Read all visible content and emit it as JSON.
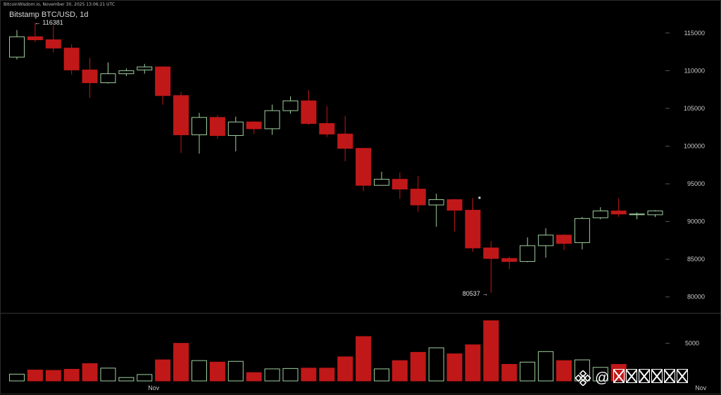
{
  "header": {
    "source_line": "BitcoinWisdom.io, November 30, 2025 13:06:21 UTC",
    "title": "Bitstamp BTC/USD, 1d"
  },
  "colors": {
    "up": "#9fcf9f",
    "down": "#c01818",
    "background": "#000000",
    "grid": "#2a2a2a"
  },
  "watermark": {
    "logo_icon": "binance-diamond-icon",
    "at_symbol": "@",
    "handle_glyph_count": 6
  },
  "chart_data": {
    "type": "candlestick",
    "title": "Bitstamp BTC/USD, 1d",
    "price_axis": {
      "ylim": [
        78200,
        117600
      ],
      "ticks": [
        115000,
        110000,
        105000,
        100000,
        95000,
        90000,
        85000,
        80000
      ],
      "tick_labels": [
        "115000",
        "110000",
        "105000",
        "100000",
        "95000",
        "90000",
        "85000",
        "80000"
      ],
      "side": "right"
    },
    "volume_axis": {
      "ylim": [
        0,
        8800
      ],
      "ticks": [
        5000
      ],
      "tick_labels": [
        "5000"
      ],
      "side": "right"
    },
    "x_tick_labels": [
      {
        "label": "Nov",
        "index": 7.5
      },
      {
        "label": "Nov",
        "index": 37.5
      }
    ],
    "annotations": [
      {
        "text": "← 116381",
        "index": 1,
        "value": 116381,
        "anchor": "high"
      },
      {
        "text": "80537 →",
        "index": 26,
        "value": 80537,
        "anchor": "low"
      }
    ],
    "candles": [
      {
        "o": 111800,
        "h": 115400,
        "l": 111500,
        "c": 114500
      },
      {
        "o": 114500,
        "h": 116381,
        "l": 113800,
        "c": 114100
      },
      {
        "o": 114100,
        "h": 116000,
        "l": 112400,
        "c": 113000
      },
      {
        "o": 113000,
        "h": 113500,
        "l": 109500,
        "c": 110100
      },
      {
        "o": 110100,
        "h": 111700,
        "l": 106400,
        "c": 108400
      },
      {
        "o": 108400,
        "h": 111100,
        "l": 108300,
        "c": 109600
      },
      {
        "o": 109600,
        "h": 110300,
        "l": 109300,
        "c": 110000
      },
      {
        "o": 110100,
        "h": 110900,
        "l": 109600,
        "c": 110500
      },
      {
        "o": 110500,
        "h": 110600,
        "l": 105500,
        "c": 106700
      },
      {
        "o": 106700,
        "h": 107200,
        "l": 99100,
        "c": 101500
      },
      {
        "o": 101500,
        "h": 104400,
        "l": 99000,
        "c": 103800
      },
      {
        "o": 103800,
        "h": 104100,
        "l": 101000,
        "c": 101400
      },
      {
        "o": 101400,
        "h": 103900,
        "l": 99300,
        "c": 103200
      },
      {
        "o": 103200,
        "h": 103300,
        "l": 101600,
        "c": 102300
      },
      {
        "o": 102300,
        "h": 105500,
        "l": 101500,
        "c": 104700
      },
      {
        "o": 104700,
        "h": 106600,
        "l": 104300,
        "c": 106000
      },
      {
        "o": 106000,
        "h": 107400,
        "l": 102800,
        "c": 103000
      },
      {
        "o": 103000,
        "h": 105300,
        "l": 101200,
        "c": 101600
      },
      {
        "o": 101600,
        "h": 104000,
        "l": 98000,
        "c": 99700
      },
      {
        "o": 99700,
        "h": 99700,
        "l": 94000,
        "c": 94800
      },
      {
        "o": 94800,
        "h": 96600,
        "l": 94800,
        "c": 95600
      },
      {
        "o": 95600,
        "h": 96500,
        "l": 93000,
        "c": 94300
      },
      {
        "o": 94300,
        "h": 96000,
        "l": 91300,
        "c": 92200
      },
      {
        "o": 92200,
        "h": 93700,
        "l": 89300,
        "c": 92900
      },
      {
        "o": 92900,
        "h": 93000,
        "l": 88700,
        "c": 91500
      },
      {
        "o": 91500,
        "h": 93100,
        "l": 86000,
        "c": 86500
      },
      {
        "o": 86500,
        "h": 87400,
        "l": 80537,
        "c": 85100
      },
      {
        "o": 85100,
        "h": 85300,
        "l": 83700,
        "c": 84700
      },
      {
        "o": 84700,
        "h": 87900,
        "l": 84600,
        "c": 86800
      },
      {
        "o": 86800,
        "h": 89100,
        "l": 85200,
        "c": 88200
      },
      {
        "o": 88200,
        "h": 88300,
        "l": 86200,
        "c": 87100
      },
      {
        "o": 87200,
        "h": 90600,
        "l": 86300,
        "c": 90400
      },
      {
        "o": 90500,
        "h": 91900,
        "l": 90300,
        "c": 91400
      },
      {
        "o": 91400,
        "h": 93100,
        "l": 90600,
        "c": 91000
      },
      {
        "o": 91000,
        "h": 91200,
        "l": 90300,
        "c": 91000
      },
      {
        "o": 90900,
        "h": 91500,
        "l": 90600,
        "c": 91400
      }
    ],
    "volume": [
      900,
      1450,
      1400,
      1550,
      2300,
      1700,
      450,
      850,
      2800,
      5000,
      2700,
      2500,
      2600,
      1100,
      1600,
      1650,
      1700,
      1700,
      3200,
      5900,
      1600,
      2700,
      3800,
      4400,
      3600,
      4800,
      8000,
      2200,
      2500,
      3900,
      2700,
      2800,
      1800,
      2200,
      0,
      0
    ],
    "volume_colors": [
      "up",
      "down",
      "down",
      "down",
      "down",
      "up",
      "up",
      "up",
      "down",
      "down",
      "up",
      "down",
      "up",
      "down",
      "up",
      "up",
      "down",
      "down",
      "down",
      "down",
      "up",
      "down",
      "down",
      "up",
      "down",
      "down",
      "down",
      "down",
      "up",
      "up",
      "down",
      "up",
      "up",
      "down",
      "up",
      "up"
    ]
  }
}
